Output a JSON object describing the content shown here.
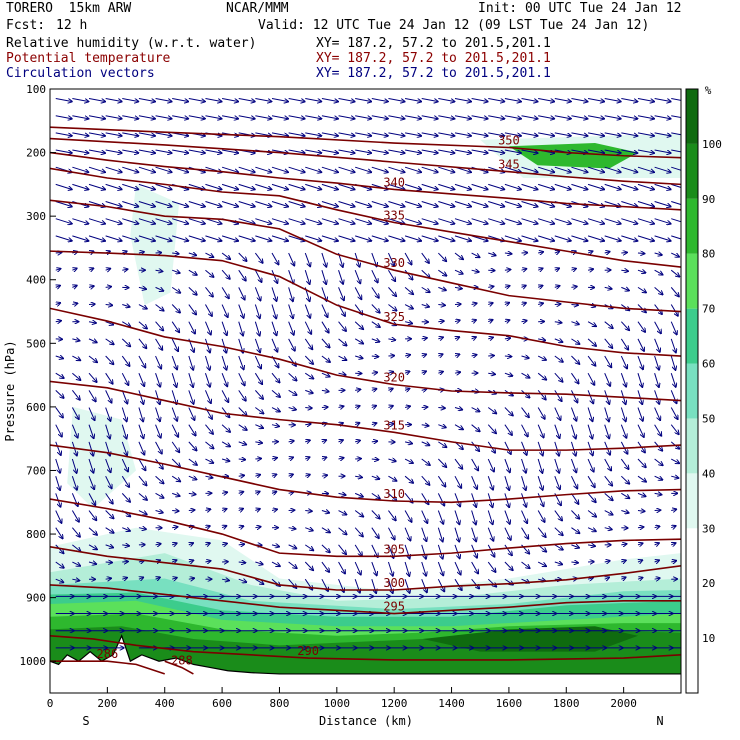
{
  "header": {
    "model": "TORERO  15km ARW",
    "org": "NCAR/MMM",
    "init": "Init: 00 UTC Tue 24 Jan 12",
    "fcst_label": "Fcst:",
    "fcst_value": "12 h",
    "valid": "Valid: 12 UTC Tue 24 Jan 12 (09 LST Tue 24 Jan 12)",
    "fields": [
      {
        "name": "Relative humidity (w.r.t. water)",
        "xy": "XY= 187.2, 57.2 to 201.5,201.1",
        "color": "#000000"
      },
      {
        "name": "Potential temperature",
        "xy": "XY= 187.2, 57.2 to 201.5,201.1",
        "color": "#8b0000"
      },
      {
        "name": "Circulation vectors",
        "xy": "XY= 187.2, 57.2 to 201.5,201.1",
        "color": "#00007f"
      }
    ]
  },
  "chart_data": {
    "type": "heatmap",
    "xlabel": "Distance (km)",
    "ylabel": "Pressure (hPa)",
    "xlim": [
      0,
      2200
    ],
    "ylim": [
      1050,
      100
    ],
    "x_ticks": [
      "0",
      "200",
      "400",
      "600",
      "800",
      "1000",
      "1200",
      "1400",
      "1600",
      "1800",
      "2000"
    ],
    "y_ticks": [
      "100",
      "200",
      "300",
      "400",
      "500",
      "600",
      "700",
      "800",
      "900",
      "1000"
    ],
    "endpoints": {
      "left": "S",
      "right": "N"
    },
    "colorbar": {
      "unit": "%",
      "levels": [
        "10",
        "20",
        "30",
        "40",
        "50",
        "60",
        "70",
        "80",
        "90",
        "100"
      ],
      "colors": [
        "#ffffff",
        "#ffffff",
        "#ffffff",
        "#e0f8f0",
        "#b4eed8",
        "#78e0c0",
        "#3ccc8c",
        "#5be05b",
        "#2eb82e",
        "#1a8c1a",
        "#0f6b0f"
      ]
    },
    "theta_contours": [
      {
        "label": "286",
        "points": [
          [
            0,
            1000
          ],
          [
            100,
            1000
          ],
          [
            200,
            1000
          ],
          [
            300,
            1005
          ],
          [
            400,
            1020
          ]
        ]
      },
      {
        "label": "288",
        "points": [
          [
            400,
            1000
          ],
          [
            460,
            1010
          ],
          [
            500,
            1020
          ]
        ]
      },
      {
        "label": "290",
        "points": [
          [
            0,
            960
          ],
          [
            150,
            965
          ],
          [
            300,
            975
          ],
          [
            500,
            985
          ],
          [
            700,
            990
          ],
          [
            900,
            995
          ],
          [
            1200,
            998
          ],
          [
            1600,
            998
          ],
          [
            2000,
            995
          ],
          [
            2200,
            990
          ]
        ]
      },
      {
        "label": "295",
        "points": [
          [
            0,
            880
          ],
          [
            200,
            885
          ],
          [
            400,
            895
          ],
          [
            600,
            905
          ],
          [
            800,
            915
          ],
          [
            1000,
            920
          ],
          [
            1200,
            925
          ],
          [
            1400,
            920
          ],
          [
            1600,
            915
          ],
          [
            1800,
            908
          ],
          [
            2000,
            905
          ],
          [
            2200,
            905
          ]
        ]
      },
      {
        "label": "300",
        "points": [
          [
            0,
            820
          ],
          [
            200,
            835
          ],
          [
            400,
            845
          ],
          [
            600,
            855
          ],
          [
            800,
            880
          ],
          [
            1000,
            888
          ],
          [
            1200,
            888
          ],
          [
            1400,
            882
          ],
          [
            1600,
            878
          ],
          [
            1800,
            872
          ],
          [
            2000,
            862
          ],
          [
            2200,
            850
          ]
        ]
      },
      {
        "label": "305",
        "points": [
          [
            0,
            745
          ],
          [
            200,
            760
          ],
          [
            400,
            778
          ],
          [
            600,
            800
          ],
          [
            800,
            830
          ],
          [
            1000,
            835
          ],
          [
            1200,
            835
          ],
          [
            1400,
            830
          ],
          [
            1600,
            822
          ],
          [
            1800,
            815
          ],
          [
            2000,
            810
          ],
          [
            2200,
            808
          ]
        ]
      },
      {
        "label": "310",
        "points": [
          [
            0,
            660
          ],
          [
            200,
            672
          ],
          [
            400,
            690
          ],
          [
            600,
            710
          ],
          [
            800,
            730
          ],
          [
            1000,
            742
          ],
          [
            1200,
            748
          ],
          [
            1400,
            750
          ],
          [
            1600,
            745
          ],
          [
            1800,
            738
          ],
          [
            2000,
            732
          ],
          [
            2200,
            730
          ]
        ]
      },
      {
        "label": "315",
        "points": [
          [
            0,
            560
          ],
          [
            200,
            570
          ],
          [
            400,
            590
          ],
          [
            600,
            610
          ],
          [
            800,
            620
          ],
          [
            1000,
            628
          ],
          [
            1200,
            640
          ],
          [
            1400,
            655
          ],
          [
            1600,
            668
          ],
          [
            1800,
            668
          ],
          [
            2000,
            665
          ],
          [
            2200,
            660
          ]
        ]
      },
      {
        "label": "320",
        "points": [
          [
            0,
            445
          ],
          [
            200,
            465
          ],
          [
            400,
            490
          ],
          [
            600,
            505
          ],
          [
            800,
            525
          ],
          [
            1000,
            550
          ],
          [
            1200,
            565
          ],
          [
            1400,
            575
          ],
          [
            1600,
            578
          ],
          [
            1800,
            580
          ],
          [
            2000,
            585
          ],
          [
            2200,
            590
          ]
        ]
      },
      {
        "label": "325",
        "points": [
          [
            0,
            355
          ],
          [
            200,
            358
          ],
          [
            400,
            362
          ],
          [
            600,
            370
          ],
          [
            800,
            395
          ],
          [
            1000,
            440
          ],
          [
            1200,
            470
          ],
          [
            1400,
            480
          ],
          [
            1600,
            488
          ],
          [
            1800,
            505
          ],
          [
            2000,
            515
          ],
          [
            2200,
            520
          ]
        ]
      },
      {
        "label": "330",
        "points": [
          [
            0,
            275
          ],
          [
            200,
            285
          ],
          [
            400,
            300
          ],
          [
            600,
            305
          ],
          [
            800,
            320
          ],
          [
            1000,
            360
          ],
          [
            1200,
            385
          ],
          [
            1400,
            405
          ],
          [
            1600,
            425
          ],
          [
            1800,
            435
          ],
          [
            2000,
            445
          ],
          [
            2200,
            450
          ]
        ]
      },
      {
        "label": "335",
        "points": [
          [
            0,
            225
          ],
          [
            200,
            240
          ],
          [
            400,
            250
          ],
          [
            600,
            262
          ],
          [
            800,
            268
          ],
          [
            1000,
            290
          ],
          [
            1200,
            310
          ],
          [
            1400,
            325
          ],
          [
            1600,
            340
          ],
          [
            1800,
            355
          ],
          [
            2000,
            370
          ],
          [
            2200,
            380
          ]
        ]
      },
      {
        "label": "340",
        "points": [
          [
            0,
            200
          ],
          [
            200,
            212
          ],
          [
            400,
            222
          ],
          [
            600,
            230
          ],
          [
            800,
            240
          ],
          [
            1000,
            248
          ],
          [
            1200,
            258
          ],
          [
            1400,
            265
          ],
          [
            1600,
            272
          ],
          [
            1800,
            280
          ],
          [
            2000,
            285
          ],
          [
            2200,
            290
          ]
        ]
      },
      {
        "label": "345",
        "points": [
          [
            0,
            178
          ],
          [
            400,
            188
          ],
          [
            800,
            200
          ],
          [
            1200,
            215
          ],
          [
            1600,
            230
          ],
          [
            1800,
            238
          ],
          [
            2000,
            245
          ],
          [
            2200,
            250
          ]
        ]
      },
      {
        "label": "350",
        "points": [
          [
            0,
            160
          ],
          [
            400,
            168
          ],
          [
            800,
            175
          ],
          [
            1200,
            185
          ],
          [
            1600,
            192
          ],
          [
            1800,
            200
          ],
          [
            2000,
            205
          ],
          [
            2200,
            208
          ]
        ]
      }
    ]
  }
}
